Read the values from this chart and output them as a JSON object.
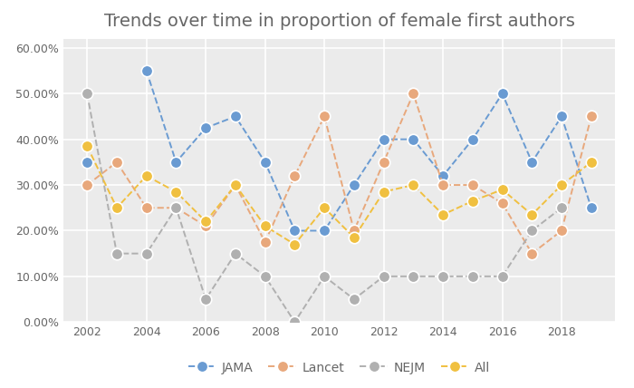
{
  "title": "Trends over time in proportion of female first authors",
  "years": [
    2002,
    2003,
    2004,
    2005,
    2006,
    2007,
    2008,
    2009,
    2010,
    2011,
    2012,
    2013,
    2014,
    2015,
    2016,
    2017,
    2018,
    2019
  ],
  "JAMA": [
    0.35,
    null,
    0.55,
    0.35,
    0.425,
    0.45,
    0.35,
    0.2,
    0.2,
    0.3,
    0.4,
    0.4,
    0.32,
    0.4,
    0.5,
    0.35,
    0.45,
    0.25
  ],
  "Lancet": [
    0.3,
    0.35,
    0.25,
    0.25,
    0.21,
    0.3,
    0.175,
    0.32,
    0.45,
    0.2,
    0.35,
    0.5,
    0.3,
    0.3,
    0.26,
    0.15,
    0.2,
    0.45
  ],
  "NEJM": [
    0.5,
    0.15,
    0.15,
    0.25,
    0.05,
    0.15,
    0.1,
    0.0,
    0.1,
    0.05,
    0.1,
    0.1,
    0.1,
    0.1,
    0.1,
    0.2,
    0.25,
    null
  ],
  "All": [
    0.385,
    0.25,
    0.32,
    0.285,
    0.22,
    0.3,
    0.21,
    0.17,
    0.25,
    0.185,
    0.285,
    0.3,
    0.235,
    0.265,
    0.29,
    0.235,
    0.3,
    0.35
  ],
  "JAMA_color": "#6A9BD2",
  "Lancet_color": "#E8A87C",
  "NEJM_color": "#B0B0B0",
  "All_color": "#F0C040",
  "fig_color": "#FFFFFF",
  "bg_color": "#EBEBEB",
  "ylim": [
    0.0,
    0.62
  ],
  "yticks": [
    0.0,
    0.1,
    0.2,
    0.3,
    0.4,
    0.5,
    0.6
  ],
  "xticks": [
    2002,
    2004,
    2006,
    2008,
    2010,
    2012,
    2014,
    2016,
    2018
  ],
  "xlim": [
    2001.2,
    2019.8
  ],
  "title_fontsize": 14,
  "tick_fontsize": 9,
  "legend_fontsize": 10,
  "marker_size": 9,
  "linewidth": 1.4
}
